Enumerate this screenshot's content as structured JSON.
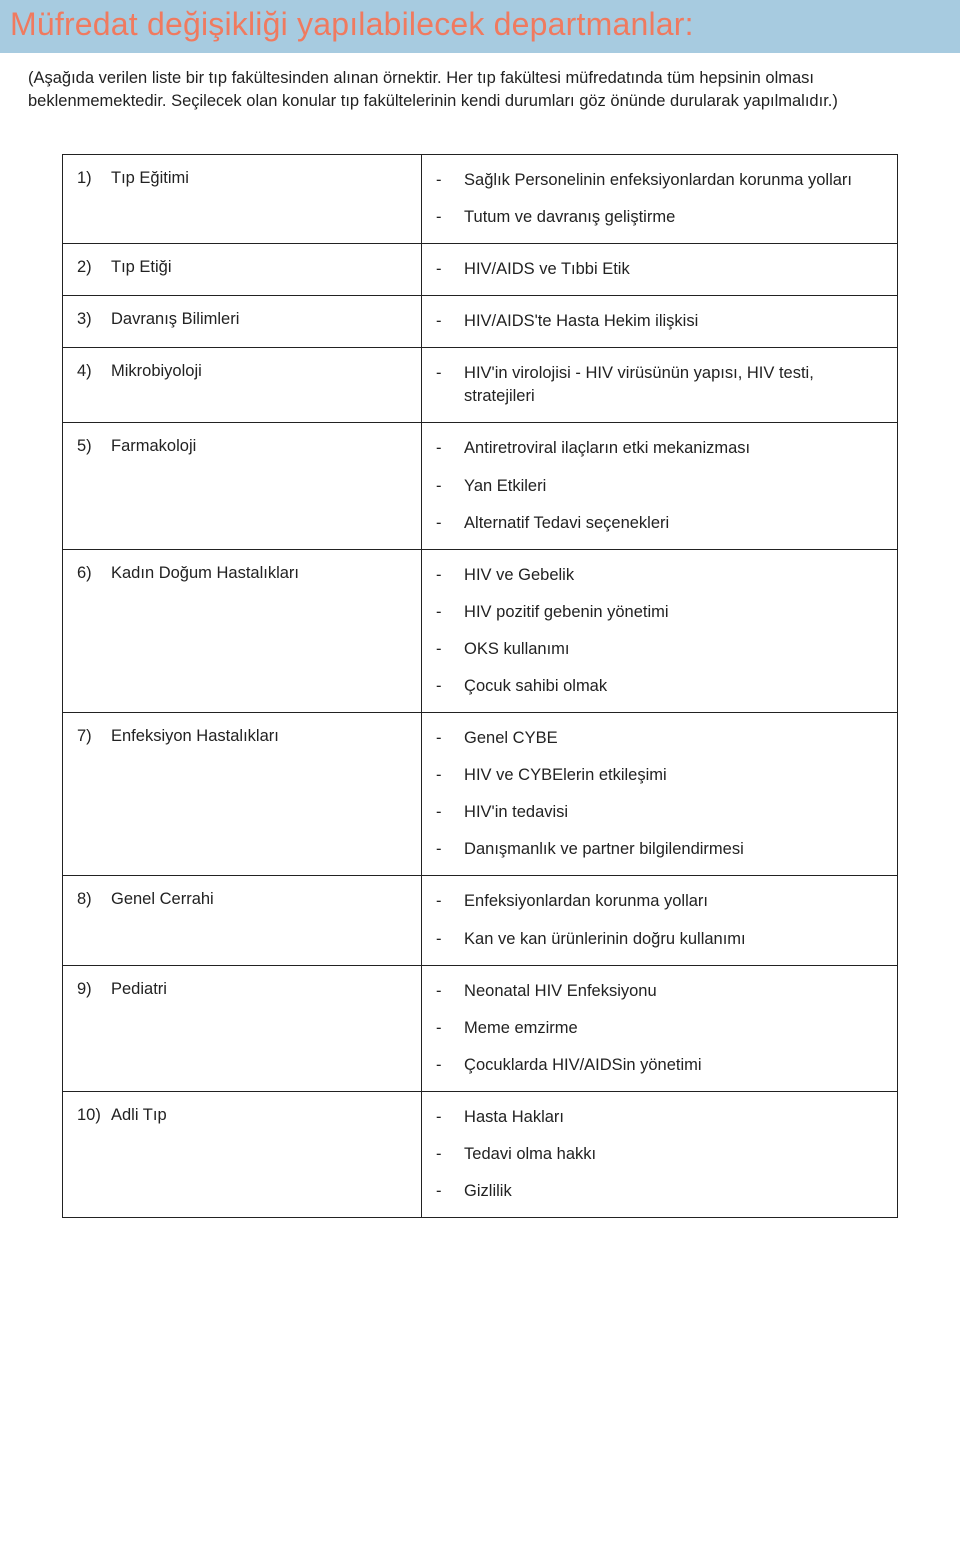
{
  "banner_title": "Müfredat değişikliği yapılabilecek departmanlar:",
  "intro_text": "(Aşağıda verilen liste bir tıp fakültesinden alınan örnektir. Her tıp fakültesi müfredatında tüm hepsinin olması beklenmemektedir. Seçilecek olan konular tıp fakültelerinin kendi durumları göz önünde durularak yapılmalıdır.)",
  "colors": {
    "banner_bg": "#a7cbe0",
    "title_text": "#f07a5f",
    "body_text": "#222222",
    "border": "#222222",
    "page_bg": "#ffffff"
  },
  "typography": {
    "title_fontsize": 32,
    "body_fontsize": 16.5,
    "font_family": "Trebuchet MS"
  },
  "table": {
    "col_widths_pct": [
      43,
      57
    ],
    "rows": [
      {
        "num": "1)",
        "dept": "Tıp Eğitimi",
        "items": [
          "Sağlık Personelinin enfeksiyonlardan korunma yolları",
          "Tutum ve davranış geliştirme"
        ]
      },
      {
        "num": "2)",
        "dept": "Tıp Etiği",
        "items": [
          "HIV/AIDS ve Tıbbi Etik"
        ]
      },
      {
        "num": "3)",
        "dept": "Davranış Bilimleri",
        "items": [
          "HIV/AIDS'te Hasta Hekim ilişkisi"
        ]
      },
      {
        "num": "4)",
        "dept": "Mikrobiyoloji",
        "items": [
          "HIV'in virolojisi - HIV virüsünün yapısı, HIV testi, stratejileri"
        ]
      },
      {
        "num": "5)",
        "dept": "Farmakoloji",
        "items": [
          "Antiretroviral ilaçların etki mekanizması",
          "Yan Etkileri",
          "Alternatif Tedavi seçenekleri"
        ]
      },
      {
        "num": "6)",
        "dept": "Kadın Doğum Hastalıkları",
        "items": [
          "HIV ve Gebelik",
          "HIV pozitif gebenin yönetimi",
          "OKS kullanımı",
          "Çocuk sahibi olmak"
        ]
      },
      {
        "num": "7)",
        "dept": "Enfeksiyon Hastalıkları",
        "items": [
          "Genel CYBE",
          "HIV ve CYBElerin etkileşimi",
          "HIV'in tedavisi",
          "Danışmanlık ve partner bilgilendirmesi"
        ]
      },
      {
        "num": "8)",
        "dept": "Genel Cerrahi",
        "items": [
          "Enfeksiyonlardan korunma yolları",
          "Kan ve kan ürünlerinin doğru kullanımı"
        ]
      },
      {
        "num": "9)",
        "dept": "Pediatri",
        "items": [
          "Neonatal HIV Enfeksiyonu",
          "Meme emzirme",
          "Çocuklarda HIV/AIDSin yönetimi"
        ]
      },
      {
        "num": "10)",
        "dept": "Adli Tıp",
        "items": [
          "Hasta Hakları",
          "Tedavi olma hakkı",
          "Gizlilik"
        ]
      }
    ]
  }
}
